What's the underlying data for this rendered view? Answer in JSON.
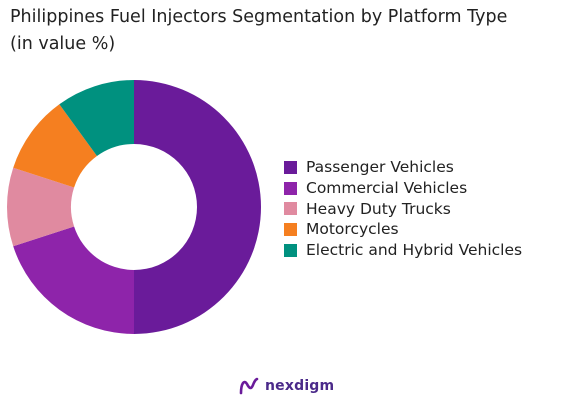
{
  "chart_data": {
    "type": "pie",
    "subtype": "donut",
    "title": "Philippines Fuel Injectors Segmentation by Platform Type",
    "subtitle": "(in value %)",
    "categories": [
      "Passenger Vehicles",
      "Commercial Vehicles",
      "Heavy Duty Trucks",
      "Motorcycles",
      "Electric and Hybrid Vehicles"
    ],
    "values": [
      50,
      20,
      10,
      10,
      10
    ],
    "colors": [
      "#6a1b9a",
      "#8e24aa",
      "#e08aa0",
      "#f57f20",
      "#00917f"
    ],
    "legend_position": "right"
  },
  "brand": {
    "name": "nexdigm",
    "mark_color": "#6a1b9a"
  }
}
